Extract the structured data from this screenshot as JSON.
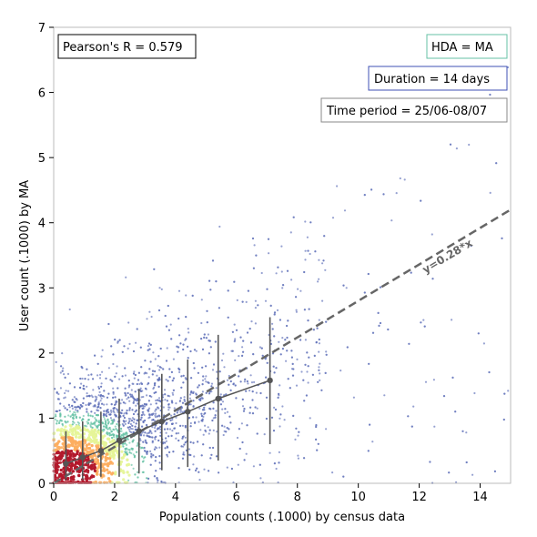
{
  "chart_data": {
    "type": "scatter",
    "title": "",
    "xlabel": "Population counts (.1000) by census data",
    "ylabel": "User count (.1000) by MA",
    "xlim": [
      0,
      15
    ],
    "ylim": [
      0,
      7
    ],
    "x_ticks": [
      0,
      2,
      4,
      6,
      8,
      10,
      12,
      14
    ],
    "y_ticks": [
      0,
      1,
      2,
      3,
      4,
      5,
      6,
      7
    ],
    "x_tick_labels": [
      "0",
      "2",
      "4",
      "6",
      "8",
      "10",
      "12",
      "14"
    ],
    "y_tick_labels": [
      "0",
      "1",
      "2",
      "3",
      "4",
      "5",
      "6",
      "7"
    ],
    "grid": false,
    "colormap": "spectral density (red = high, yellow, green, cyan, blue = low)",
    "annotations": {
      "pearson": "Pearson's R = 0.579",
      "hda": "HDA = MA",
      "duration": "Duration = 14 days",
      "period": "Time period = 25/06-08/07"
    },
    "fit_line": {
      "label": "y=0.28*x",
      "slope": 0.28,
      "color": "#666666",
      "style": "dashed"
    },
    "binned_means": {
      "color": "#555555",
      "x": [
        0.4,
        0.95,
        1.55,
        2.15,
        2.8,
        3.55,
        4.4,
        5.4,
        7.1
      ],
      "y": [
        0.3,
        0.4,
        0.5,
        0.66,
        0.8,
        0.95,
        1.1,
        1.3,
        1.58
      ],
      "y_err_low": [
        0.05,
        0.05,
        0.1,
        0.1,
        0.15,
        0.2,
        0.25,
        0.35,
        0.6
      ],
      "y_err_high": [
        0.8,
        0.95,
        1.1,
        1.3,
        1.45,
        1.68,
        1.9,
        2.28,
        2.55
      ]
    },
    "colors": {
      "high": "#b2182b",
      "mid_high": "#fdae61",
      "mid": "#e6f598",
      "mid_low": "#66c2a5",
      "low": "#5e6fb8",
      "box_pearson": "#000000",
      "box_hda": "#66c2a5",
      "box_duration": "#3f51b5",
      "box_period": "#888888"
    }
  }
}
